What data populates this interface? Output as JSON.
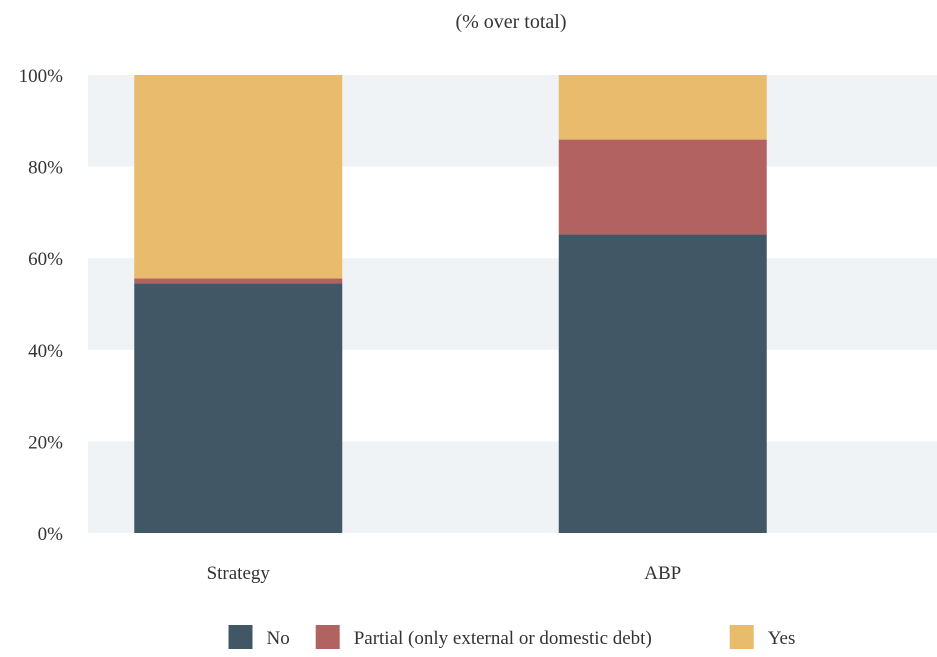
{
  "chart_data": {
    "type": "bar",
    "stacked": true,
    "title": "",
    "subtitle": "(% over total)",
    "categories": [
      "Strategy",
      "ABP"
    ],
    "series": [
      {
        "name": "No",
        "color": "#415766",
        "values": [
          54.5,
          65.2
        ]
      },
      {
        "name": "Partial (only external or domestic debt)",
        "color": "#b26261",
        "values": [
          1.1,
          20.7
        ]
      },
      {
        "name": "Yes",
        "color": "#e9bb6c",
        "values": [
          44.4,
          14.1
        ]
      }
    ],
    "ylim": [
      0,
      100
    ],
    "yticks": [
      0,
      20,
      40,
      60,
      80,
      100
    ],
    "ytick_labels": [
      "0%",
      "20%",
      "40%",
      "60%",
      "80%",
      "100%"
    ],
    "grid": "alternating horizontal bands",
    "legend": "bottom"
  }
}
